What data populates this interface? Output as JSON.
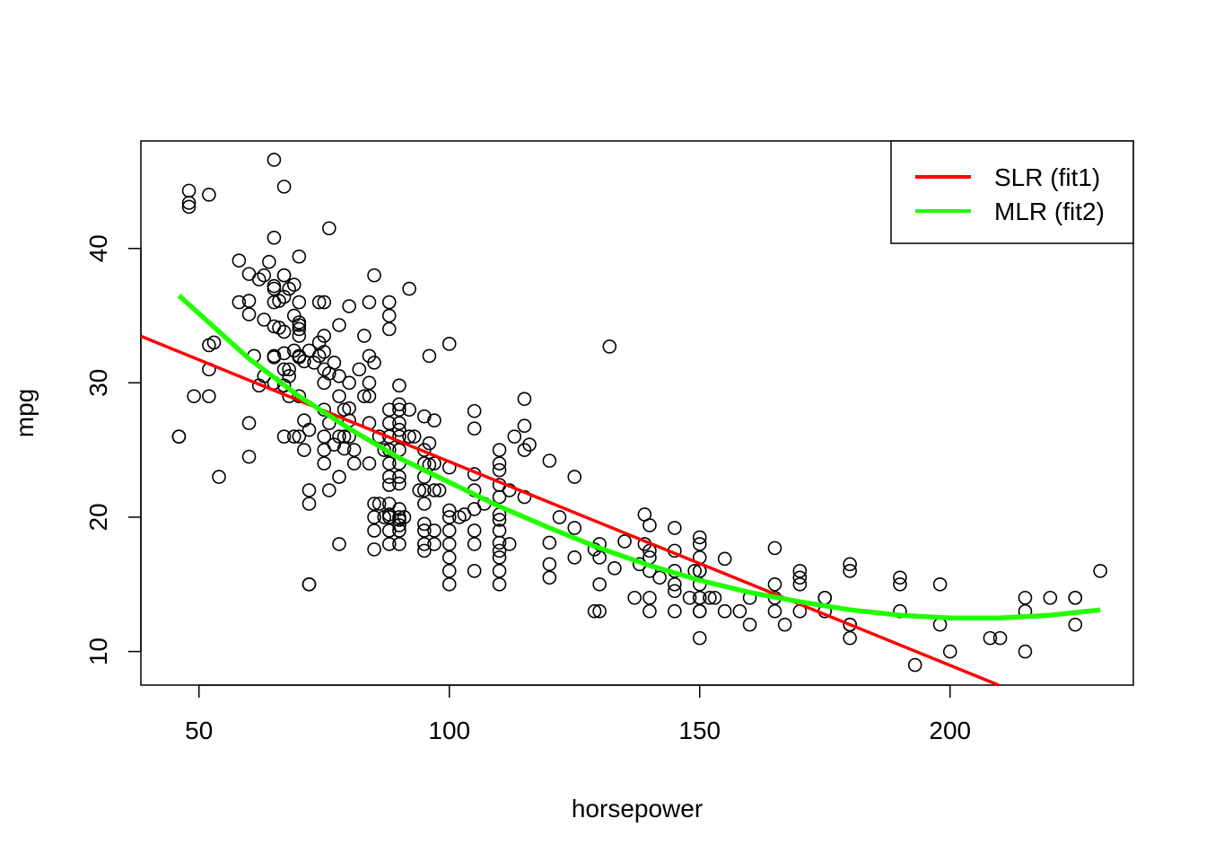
{
  "chart_data": {
    "type": "scatter",
    "title": "",
    "xlabel": "horsepower",
    "ylabel": "mpg",
    "xlim": [
      38.4,
      236.6
    ],
    "ylim": [
      7.5,
      48.0
    ],
    "xticks": [
      50,
      100,
      150,
      200
    ],
    "yticks": [
      10,
      20,
      30,
      40
    ],
    "grid": false,
    "legend_position": "top-right",
    "series": [
      {
        "type": "scatter",
        "marker": "open-circle",
        "color": "#000000",
        "points": [
          [
            46,
            26
          ],
          [
            46,
            26
          ],
          [
            48,
            44.3
          ],
          [
            48,
            43.1
          ],
          [
            48,
            43.4
          ],
          [
            49,
            29
          ],
          [
            52,
            44
          ],
          [
            52,
            29
          ],
          [
            52,
            31
          ],
          [
            52,
            32.8
          ],
          [
            53,
            33
          ],
          [
            54,
            23
          ],
          [
            58,
            36
          ],
          [
            58,
            39.1
          ],
          [
            60,
            38.1
          ],
          [
            60,
            36.1
          ],
          [
            60,
            27
          ],
          [
            60,
            24.5
          ],
          [
            60,
            35.1
          ],
          [
            61,
            32
          ],
          [
            62,
            37.7
          ],
          [
            62,
            29.8
          ],
          [
            63,
            34.7
          ],
          [
            63,
            38
          ],
          [
            63,
            30.5
          ],
          [
            64,
            39
          ],
          [
            65,
            46.6
          ],
          [
            65,
            40.8
          ],
          [
            65,
            37.2
          ],
          [
            65,
            34.2
          ],
          [
            65,
            31.9
          ],
          [
            65,
            37
          ],
          [
            65,
            32
          ],
          [
            65,
            36
          ],
          [
            65,
            30
          ],
          [
            66,
            34.1
          ],
          [
            66,
            36.1
          ],
          [
            67,
            44.6
          ],
          [
            67,
            38
          ],
          [
            67,
            36.4
          ],
          [
            67,
            33.8
          ],
          [
            67,
            32.2
          ],
          [
            67,
            31
          ],
          [
            67,
            29.8
          ],
          [
            67,
            26
          ],
          [
            67,
            38
          ],
          [
            68,
            37
          ],
          [
            68,
            31
          ],
          [
            68,
            29
          ],
          [
            68,
            30.5
          ],
          [
            69,
            37.3
          ],
          [
            69,
            35
          ],
          [
            69,
            32.4
          ],
          [
            69,
            26
          ],
          [
            70,
            39.4
          ],
          [
            70,
            36
          ],
          [
            70,
            34.5
          ],
          [
            70,
            34
          ],
          [
            70,
            33.5
          ],
          [
            70,
            31.9
          ],
          [
            70,
            32
          ],
          [
            70,
            29
          ],
          [
            70,
            26
          ],
          [
            70,
            34.3
          ],
          [
            71,
            31.6
          ],
          [
            71,
            27.2
          ],
          [
            71,
            25
          ],
          [
            72,
            32.4
          ],
          [
            72,
            26.5
          ],
          [
            72,
            22
          ],
          [
            72,
            21
          ],
          [
            72,
            15
          ],
          [
            72,
            15
          ],
          [
            73,
            31.5
          ],
          [
            74,
            36
          ],
          [
            74,
            33
          ],
          [
            74,
            32
          ],
          [
            75,
            36
          ],
          [
            75,
            33.5
          ],
          [
            75,
            32.3
          ],
          [
            75,
            31
          ],
          [
            75,
            30
          ],
          [
            75,
            28
          ],
          [
            75,
            26
          ],
          [
            75,
            25
          ],
          [
            75,
            24
          ],
          [
            76,
            41.5
          ],
          [
            76,
            30.7
          ],
          [
            76,
            27
          ],
          [
            76,
            22
          ],
          [
            77,
            31.5
          ],
          [
            77,
            25.4
          ],
          [
            78,
            34.3
          ],
          [
            78,
            30.5
          ],
          [
            78,
            29
          ],
          [
            78,
            26
          ],
          [
            78,
            23
          ],
          [
            78,
            18
          ],
          [
            79,
            28
          ],
          [
            79,
            26
          ],
          [
            79,
            25.1
          ],
          [
            80,
            35.7
          ],
          [
            80,
            30
          ],
          [
            80,
            28.1
          ],
          [
            80,
            27.2
          ],
          [
            80,
            26
          ],
          [
            81,
            24
          ],
          [
            81,
            25
          ],
          [
            82,
            31
          ],
          [
            83,
            33.5
          ],
          [
            83,
            29
          ],
          [
            84,
            36
          ],
          [
            84,
            32
          ],
          [
            84,
            30
          ],
          [
            84,
            29
          ],
          [
            84,
            27
          ],
          [
            84,
            24
          ],
          [
            85,
            38
          ],
          [
            85,
            31.5
          ],
          [
            85,
            21
          ],
          [
            85,
            20
          ],
          [
            85,
            19
          ],
          [
            85,
            17.6
          ],
          [
            86,
            26
          ],
          [
            86,
            21
          ],
          [
            87,
            25
          ],
          [
            87,
            20
          ],
          [
            88,
            36
          ],
          [
            88,
            35
          ],
          [
            88,
            34
          ],
          [
            88,
            28
          ],
          [
            88,
            27
          ],
          [
            88,
            26
          ],
          [
            88,
            25
          ],
          [
            88,
            24
          ],
          [
            88,
            23
          ],
          [
            88,
            22.4
          ],
          [
            88,
            21
          ],
          [
            88,
            20
          ],
          [
            88,
            20.2
          ],
          [
            88,
            19
          ],
          [
            88,
            18
          ],
          [
            90,
            29.8
          ],
          [
            90,
            28.4
          ],
          [
            90,
            28
          ],
          [
            90,
            27
          ],
          [
            90,
            26.5
          ],
          [
            90,
            26
          ],
          [
            90,
            25
          ],
          [
            90,
            24
          ],
          [
            90,
            23
          ],
          [
            90,
            22.5
          ],
          [
            90,
            20.6
          ],
          [
            90,
            20
          ],
          [
            90,
            19.8
          ],
          [
            90,
            19.4
          ],
          [
            90,
            19
          ],
          [
            90,
            18
          ],
          [
            91,
            20
          ],
          [
            92,
            37
          ],
          [
            92,
            28
          ],
          [
            92,
            26
          ],
          [
            93,
            26
          ],
          [
            94,
            22
          ],
          [
            95,
            27.5
          ],
          [
            95,
            25
          ],
          [
            95,
            24
          ],
          [
            95,
            23
          ],
          [
            95,
            22
          ],
          [
            95,
            21
          ],
          [
            95,
            19.5
          ],
          [
            95,
            19
          ],
          [
            95,
            18
          ],
          [
            95,
            17.5
          ],
          [
            96,
            32
          ],
          [
            96,
            25.5
          ],
          [
            96,
            23.9
          ],
          [
            97,
            27.2
          ],
          [
            97,
            24
          ],
          [
            97,
            22
          ],
          [
            97,
            19
          ],
          [
            97,
            18
          ],
          [
            98,
            22
          ],
          [
            100,
            32.9
          ],
          [
            100,
            23.7
          ],
          [
            100,
            20.5
          ],
          [
            100,
            20
          ],
          [
            100,
            19
          ],
          [
            100,
            18
          ],
          [
            100,
            17
          ],
          [
            100,
            16
          ],
          [
            100,
            15
          ],
          [
            102,
            20
          ],
          [
            103,
            20.2
          ],
          [
            105,
            27.9
          ],
          [
            105,
            26.6
          ],
          [
            105,
            23.2
          ],
          [
            105,
            22
          ],
          [
            105,
            20.6
          ],
          [
            105,
            19
          ],
          [
            105,
            18
          ],
          [
            105,
            16
          ],
          [
            107,
            21
          ],
          [
            110,
            25
          ],
          [
            110,
            24
          ],
          [
            110,
            23.5
          ],
          [
            110,
            22.4
          ],
          [
            110,
            21.5
          ],
          [
            110,
            20.2
          ],
          [
            110,
            19.8
          ],
          [
            110,
            19
          ],
          [
            110,
            18.1
          ],
          [
            110,
            17.5
          ],
          [
            110,
            17
          ],
          [
            110,
            16
          ],
          [
            110,
            15
          ],
          [
            112,
            22
          ],
          [
            112,
            18
          ],
          [
            113,
            26
          ],
          [
            115,
            28.8
          ],
          [
            115,
            26.8
          ],
          [
            115,
            25
          ],
          [
            115,
            21.5
          ],
          [
            116,
            25.4
          ],
          [
            120,
            24.2
          ],
          [
            120,
            18.1
          ],
          [
            120,
            16.5
          ],
          [
            120,
            15.5
          ],
          [
            122,
            20
          ],
          [
            125,
            23
          ],
          [
            125,
            19.2
          ],
          [
            125,
            17
          ],
          [
            129,
            17.6
          ],
          [
            129,
            13
          ],
          [
            130,
            18
          ],
          [
            130,
            17
          ],
          [
            130,
            15
          ],
          [
            130,
            13
          ],
          [
            132,
            32.7
          ],
          [
            133,
            16.2
          ],
          [
            135,
            18.2
          ],
          [
            137,
            14
          ],
          [
            138,
            16.5
          ],
          [
            139,
            20.2
          ],
          [
            139,
            18
          ],
          [
            140,
            19.4
          ],
          [
            140,
            17.5
          ],
          [
            140,
            17
          ],
          [
            140,
            16
          ],
          [
            140,
            14
          ],
          [
            140,
            13
          ],
          [
            142,
            15.5
          ],
          [
            145,
            19.2
          ],
          [
            145,
            17.5
          ],
          [
            145,
            16
          ],
          [
            145,
            15
          ],
          [
            145,
            14.5
          ],
          [
            145,
            13
          ],
          [
            148,
            14
          ],
          [
            149,
            16
          ],
          [
            150,
            18.5
          ],
          [
            150,
            18
          ],
          [
            150,
            17
          ],
          [
            150,
            16
          ],
          [
            150,
            15
          ],
          [
            150,
            14
          ],
          [
            150,
            13
          ],
          [
            150,
            11
          ],
          [
            150,
            16
          ],
          [
            150,
            14
          ],
          [
            150,
            13
          ],
          [
            152,
            14
          ],
          [
            153,
            14
          ],
          [
            155,
            16.9
          ],
          [
            155,
            13
          ],
          [
            158,
            13
          ],
          [
            160,
            14
          ],
          [
            160,
            12
          ],
          [
            165,
            17.7
          ],
          [
            165,
            15
          ],
          [
            165,
            14
          ],
          [
            165,
            13
          ],
          [
            167,
            12
          ],
          [
            170,
            16
          ],
          [
            170,
            15.5
          ],
          [
            170,
            15
          ],
          [
            170,
            13
          ],
          [
            175,
            14
          ],
          [
            175,
            13
          ],
          [
            175,
            14
          ],
          [
            180,
            16.5
          ],
          [
            180,
            16
          ],
          [
            180,
            12
          ],
          [
            180,
            11
          ],
          [
            180,
            12
          ],
          [
            190,
            15.5
          ],
          [
            190,
            15
          ],
          [
            190,
            13
          ],
          [
            193,
            9
          ],
          [
            198,
            15
          ],
          [
            198,
            12
          ],
          [
            200,
            10
          ],
          [
            208,
            11
          ],
          [
            210,
            11
          ],
          [
            215,
            14
          ],
          [
            215,
            13
          ],
          [
            215,
            10
          ],
          [
            220,
            14
          ],
          [
            225,
            14
          ],
          [
            225,
            12
          ],
          [
            225,
            14
          ],
          [
            230,
            16
          ]
        ]
      },
      {
        "name": "SLR (fit1)",
        "type": "line",
        "color": "#ff0000",
        "x": [
          38.4,
          209.7
        ],
        "y": [
          33.47,
          7.5
        ]
      },
      {
        "name": "MLR (fit2)",
        "type": "line",
        "color": "#22ff00",
        "x": [
          46,
          60,
          70,
          80,
          90,
          100,
          110,
          120,
          130,
          140,
          150,
          160,
          170,
          180,
          190,
          200,
          210,
          220,
          230
        ],
        "y": [
          36.5,
          31.8,
          29.0,
          26.6,
          24.4,
          22.6,
          20.8,
          19.2,
          17.7,
          16.4,
          15.3,
          14.4,
          13.7,
          13.1,
          12.7,
          12.5,
          12.5,
          12.7,
          13.1
        ]
      }
    ],
    "legend": [
      {
        "label": "SLR (fit1)",
        "color": "#ff0000"
      },
      {
        "label": "MLR (fit2)",
        "color": "#22ff00"
      }
    ]
  }
}
